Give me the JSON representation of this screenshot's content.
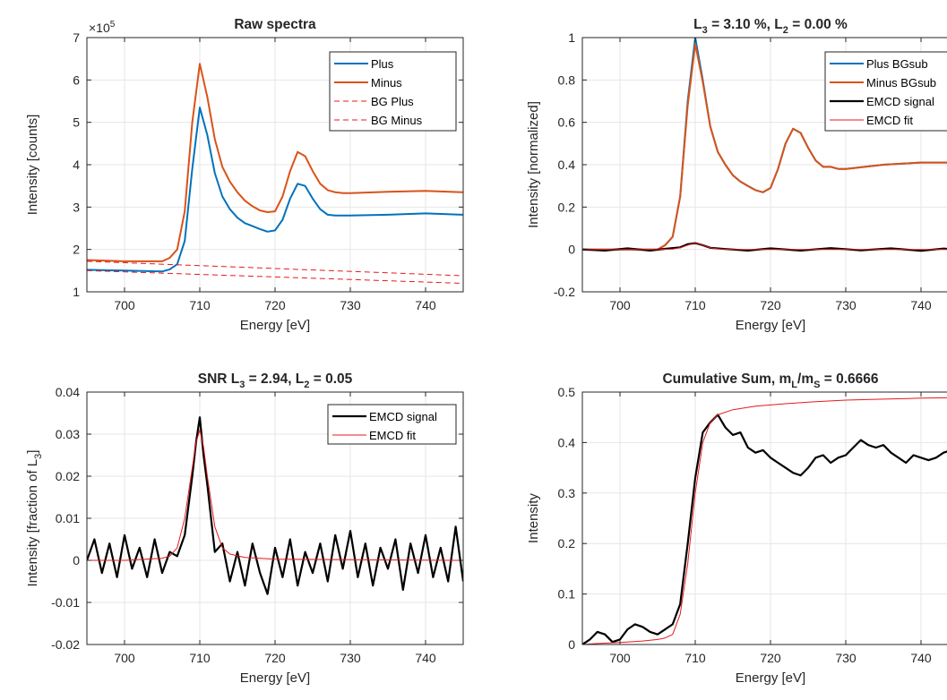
{
  "figure": {
    "type": "MATLAB figure",
    "layout": "2x2 subplots"
  },
  "chart_data": [
    {
      "type": "line",
      "title": "Raw spectra",
      "xlabel": "Energy [eV]",
      "ylabel": "Intensity [counts]",
      "ylabel_sup": "",
      "xlim": [
        695,
        745
      ],
      "ylim": [
        1,
        7
      ],
      "x_ticks": [
        700,
        710,
        720,
        730,
        740
      ],
      "y_ticks": [
        1,
        2,
        3,
        4,
        5,
        6,
        7
      ],
      "y_tick_labels": [
        "1",
        "2",
        "3",
        "4",
        "5",
        "6",
        "7"
      ],
      "exponent_label": "×10",
      "exponent_power": "5",
      "grid": true,
      "legend_position": "top-right",
      "series": [
        {
          "name": "Plus",
          "color": "#0072BD",
          "style": "solid",
          "x": [
            695,
            700,
            705,
            706,
            707,
            708,
            709,
            710,
            711,
            712,
            713,
            714,
            715,
            716,
            717,
            718,
            719,
            720,
            721,
            722,
            723,
            724,
            725,
            726,
            727,
            728,
            729,
            730,
            735,
            740,
            745
          ],
          "y": [
            1.52,
            1.5,
            1.48,
            1.53,
            1.65,
            2.2,
            3.9,
            5.35,
            4.7,
            3.8,
            3.25,
            2.95,
            2.75,
            2.62,
            2.55,
            2.48,
            2.42,
            2.45,
            2.7,
            3.2,
            3.55,
            3.5,
            3.2,
            2.95,
            2.82,
            2.8,
            2.8,
            2.8,
            2.82,
            2.85,
            2.82
          ]
        },
        {
          "name": "Minus",
          "color": "#D95319",
          "style": "solid",
          "x": [
            695,
            700,
            705,
            706,
            707,
            708,
            709,
            710,
            711,
            712,
            713,
            714,
            715,
            716,
            717,
            718,
            719,
            720,
            721,
            722,
            723,
            724,
            725,
            726,
            727,
            728,
            729,
            730,
            735,
            740,
            745
          ],
          "y": [
            1.75,
            1.72,
            1.72,
            1.8,
            2.0,
            2.9,
            5.0,
            6.38,
            5.6,
            4.6,
            3.95,
            3.6,
            3.35,
            3.15,
            3.02,
            2.92,
            2.88,
            2.9,
            3.25,
            3.85,
            4.3,
            4.2,
            3.85,
            3.55,
            3.4,
            3.35,
            3.33,
            3.33,
            3.36,
            3.38,
            3.35
          ]
        },
        {
          "name": "BG Plus",
          "color": "#E41A1C",
          "style": "dashed",
          "x": [
            695,
            745
          ],
          "y": [
            1.5,
            1.2
          ]
        },
        {
          "name": "BG Minus",
          "color": "#E41A1C",
          "style": "dashed",
          "x": [
            695,
            745
          ],
          "y": [
            1.72,
            1.38
          ]
        }
      ]
    },
    {
      "type": "line",
      "title": "L",
      "title_parts": [
        {
          "t": "L"
        },
        {
          "t": "3",
          "sub": true
        },
        {
          "t": " = 3.10 %, L"
        },
        {
          "t": "2",
          "sub": true
        },
        {
          "t": " = 0.00 %"
        }
      ],
      "xlabel": "Energy [eV]",
      "ylabel": "Intensity [normalized]",
      "ylabel_sup": "",
      "xlim": [
        695,
        745
      ],
      "ylim": [
        -0.2,
        1
      ],
      "x_ticks": [
        700,
        710,
        720,
        730,
        740
      ],
      "y_ticks": [
        -0.2,
        0,
        0.2,
        0.4,
        0.6,
        0.8,
        1
      ],
      "y_tick_labels": [
        "-0.2",
        "0",
        "0.2",
        "0.4",
        "0.6",
        "0.8",
        "1"
      ],
      "grid": true,
      "legend_position": "top-right",
      "series": [
        {
          "name": "Plus BGsub",
          "color": "#0072BD",
          "style": "solid",
          "x": [
            695,
            700,
            705,
            706,
            707,
            708,
            709,
            710,
            711,
            712,
            713,
            714,
            715,
            716,
            717,
            718,
            719,
            720,
            721,
            722,
            723,
            724,
            725,
            726,
            727,
            728,
            729,
            730,
            735,
            740,
            745
          ],
          "y": [
            0,
            0,
            0,
            0.02,
            0.06,
            0.25,
            0.7,
            1.0,
            0.8,
            0.58,
            0.46,
            0.4,
            0.35,
            0.32,
            0.3,
            0.28,
            0.27,
            0.29,
            0.38,
            0.5,
            0.57,
            0.55,
            0.48,
            0.42,
            0.39,
            0.39,
            0.38,
            0.38,
            0.4,
            0.41,
            0.41
          ]
        },
        {
          "name": "Minus BGsub",
          "color": "#D95319",
          "style": "solid",
          "x": [
            695,
            700,
            705,
            706,
            707,
            708,
            709,
            710,
            711,
            712,
            713,
            714,
            715,
            716,
            717,
            718,
            719,
            720,
            721,
            722,
            723,
            724,
            725,
            726,
            727,
            728,
            729,
            730,
            735,
            740,
            745
          ],
          "y": [
            0,
            0,
            0,
            0.02,
            0.06,
            0.25,
            0.68,
            0.97,
            0.79,
            0.58,
            0.46,
            0.4,
            0.35,
            0.32,
            0.3,
            0.28,
            0.27,
            0.29,
            0.38,
            0.5,
            0.57,
            0.55,
            0.48,
            0.42,
            0.39,
            0.39,
            0.38,
            0.38,
            0.4,
            0.41,
            0.41
          ]
        },
        {
          "name": "EMCD signal",
          "color": "#000000",
          "style": "solid",
          "width": 2.2,
          "x": [
            695,
            698,
            701,
            704,
            706,
            708,
            709,
            710,
            711,
            712,
            714,
            717,
            720,
            724,
            728,
            732,
            736,
            740,
            743,
            745
          ],
          "y": [
            0,
            -0.005,
            0.005,
            -0.005,
            0.003,
            0.01,
            0.025,
            0.03,
            0.02,
            0.008,
            0.002,
            -0.005,
            0.005,
            -0.005,
            0.006,
            -0.004,
            0.005,
            -0.006,
            0.004,
            -0.002
          ]
        },
        {
          "name": "EMCD fit",
          "color": "#E41A1C",
          "style": "solid",
          "width": 1,
          "x": [
            695,
            705,
            707,
            708,
            709,
            710,
            711,
            712,
            713,
            715,
            745
          ],
          "y": [
            0,
            0,
            0.002,
            0.008,
            0.02,
            0.031,
            0.02,
            0.008,
            0.003,
            0,
            0
          ]
        }
      ]
    },
    {
      "type": "line",
      "title": "SNR L",
      "title_parts": [
        {
          "t": "SNR L"
        },
        {
          "t": "3",
          "sub": true
        },
        {
          "t": " = 2.94, L"
        },
        {
          "t": "2",
          "sub": true
        },
        {
          "t": " = 0.05"
        }
      ],
      "xlabel": "Energy [eV]",
      "ylabel": "Intensity [fraction of L",
      "ylabel_sub": "3",
      "ylabel_end": "]",
      "xlim": [
        695,
        745
      ],
      "ylim": [
        -0.02,
        0.04
      ],
      "x_ticks": [
        700,
        710,
        720,
        730,
        740
      ],
      "y_ticks": [
        -0.02,
        -0.01,
        0,
        0.01,
        0.02,
        0.03,
        0.04
      ],
      "y_tick_labels": [
        "-0.02",
        "-0.01",
        "0",
        "0.01",
        "0.02",
        "0.03",
        "0.04"
      ],
      "grid": true,
      "legend_position": "top-right",
      "series": [
        {
          "name": "EMCD signal",
          "color": "#000000",
          "style": "solid",
          "width": 2.2,
          "x": [
            695,
            696,
            697,
            698,
            699,
            700,
            701,
            702,
            703,
            704,
            705,
            706,
            707,
            708,
            709,
            709.5,
            710,
            710.5,
            711,
            711.5,
            712,
            713,
            714,
            715,
            716,
            717,
            718,
            719,
            720,
            721,
            722,
            723,
            724,
            725,
            726,
            727,
            728,
            729,
            730,
            731,
            732,
            733,
            734,
            735,
            736,
            737,
            738,
            739,
            740,
            741,
            742,
            743,
            744,
            745
          ],
          "y": [
            0,
            0.005,
            -0.003,
            0.004,
            -0.004,
            0.006,
            -0.002,
            0.003,
            -0.004,
            0.005,
            -0.003,
            0.002,
            0.001,
            0.006,
            0.02,
            0.028,
            0.034,
            0.025,
            0.018,
            0.01,
            0.002,
            0.004,
            -0.005,
            0.002,
            -0.006,
            0.004,
            -0.003,
            -0.008,
            0.003,
            -0.004,
            0.005,
            -0.006,
            0.002,
            -0.003,
            0.004,
            -0.005,
            0.006,
            -0.002,
            0.007,
            -0.004,
            0.004,
            -0.006,
            0.003,
            -0.002,
            0.005,
            -0.007,
            0.004,
            -0.003,
            0.006,
            -0.004,
            0.003,
            -0.005,
            0.008,
            -0.005
          ]
        },
        {
          "name": "EMCD fit",
          "color": "#E41A1C",
          "style": "solid",
          "width": 1,
          "x": [
            695,
            700,
            705,
            706,
            707,
            708,
            709,
            709.5,
            710,
            710.5,
            711,
            712,
            713,
            714,
            716,
            720,
            745
          ],
          "y": [
            0,
            0,
            0.0005,
            0.001,
            0.003,
            0.01,
            0.022,
            0.028,
            0.031,
            0.027,
            0.02,
            0.008,
            0.003,
            0.0015,
            0.0007,
            0.0003,
            0
          ]
        }
      ]
    },
    {
      "type": "line",
      "title": "Cumulative Sum, m",
      "title_parts": [
        {
          "t": "Cumulative Sum, m"
        },
        {
          "t": "L",
          "sub": true
        },
        {
          "t": "/m"
        },
        {
          "t": "S",
          "sub": true
        },
        {
          "t": " = 0.6666"
        }
      ],
      "xlabel": "Energy [eV]",
      "ylabel": "Intensity",
      "ylabel_sup": "",
      "xlim": [
        695,
        745
      ],
      "ylim": [
        0,
        0.5
      ],
      "x_ticks": [
        700,
        710,
        720,
        730,
        740
      ],
      "y_ticks": [
        0,
        0.1,
        0.2,
        0.3,
        0.4,
        0.5
      ],
      "y_tick_labels": [
        "0",
        "0.1",
        "0.2",
        "0.3",
        "0.4",
        "0.5"
      ],
      "grid": true,
      "legend_position": "none",
      "series": [
        {
          "color": "#000000",
          "style": "solid",
          "width": 2.2,
          "x": [
            695,
            696,
            697,
            698,
            699,
            700,
            701,
            702,
            703,
            704,
            705,
            706,
            707,
            708,
            709,
            710,
            711,
            712,
            713,
            714,
            715,
            716,
            717,
            718,
            719,
            720,
            721,
            722,
            723,
            724,
            725,
            726,
            727,
            728,
            729,
            730,
            731,
            732,
            733,
            734,
            735,
            736,
            737,
            738,
            739,
            740,
            741,
            742,
            743,
            744,
            745
          ],
          "y": [
            0,
            0.01,
            0.025,
            0.02,
            0.005,
            0.01,
            0.03,
            0.04,
            0.035,
            0.025,
            0.02,
            0.03,
            0.04,
            0.08,
            0.2,
            0.33,
            0.42,
            0.44,
            0.455,
            0.43,
            0.415,
            0.42,
            0.39,
            0.38,
            0.385,
            0.37,
            0.36,
            0.35,
            0.34,
            0.335,
            0.35,
            0.37,
            0.375,
            0.36,
            0.37,
            0.375,
            0.39,
            0.405,
            0.395,
            0.39,
            0.395,
            0.38,
            0.37,
            0.36,
            0.375,
            0.37,
            0.365,
            0.37,
            0.38,
            0.385,
            0.385
          ]
        },
        {
          "color": "#E41A1C",
          "style": "solid",
          "width": 1,
          "x": [
            695,
            697,
            700,
            703,
            705,
            706,
            707,
            708,
            709,
            710,
            711,
            712,
            713,
            715,
            718,
            722,
            726,
            730,
            735,
            740,
            745
          ],
          "y": [
            0,
            0.002,
            0.004,
            0.007,
            0.01,
            0.013,
            0.02,
            0.06,
            0.16,
            0.3,
            0.4,
            0.44,
            0.455,
            0.465,
            0.472,
            0.477,
            0.481,
            0.484,
            0.486,
            0.488,
            0.489
          ]
        }
      ]
    }
  ]
}
